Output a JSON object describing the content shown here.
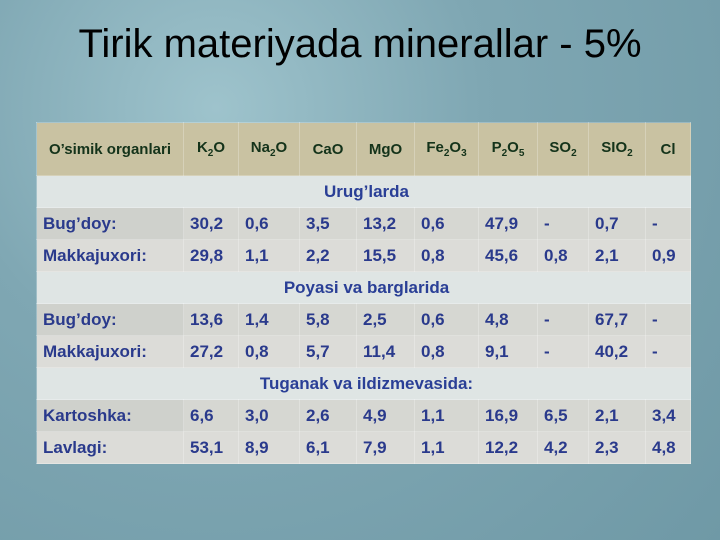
{
  "slide": {
    "title": "Tirik materiyada minerallar - 5%",
    "table": {
      "header": [
        [
          "O’simik organlari"
        ],
        [
          "K",
          "2",
          "O"
        ],
        [
          "Na",
          "2",
          "O"
        ],
        [
          "CaO"
        ],
        [
          "MgO"
        ],
        [
          "Fe",
          "2",
          "O",
          "3",
          ""
        ],
        [
          "P",
          "2",
          "O",
          "5",
          ""
        ],
        [
          "SO",
          "2",
          ""
        ],
        [
          "SIO",
          "2",
          ""
        ],
        [
          "Cl"
        ]
      ],
      "sections": [
        {
          "title": "Urug’larda",
          "rows": [
            {
              "label": "Bug’doy:",
              "cells": [
                "30,2",
                "0,6",
                "3,5",
                "13,2",
                "0,6",
                "47,9",
                "-",
                "0,7",
                "-"
              ],
              "highlight": [
                0,
                5
              ]
            },
            {
              "label": "Makkajuxori:",
              "cells": [
                "29,8",
                "1,1",
                "2,2",
                "15,5",
                "0,8",
                "45,6",
                "0,8",
                "2,1",
                "0,9"
              ],
              "highlight": [
                0,
                5
              ]
            }
          ]
        },
        {
          "title": "Poyasi va barglarida",
          "rows": [
            {
              "label": "Bug’doy:",
              "cells": [
                "13,6",
                "1,4",
                "5,8",
                "2,5",
                "0,6",
                "4,8",
                "-",
                "67,7",
                "-"
              ],
              "highlight": [
                7
              ]
            },
            {
              "label": "Makkajuxori:",
              "cells": [
                "27,2",
                "0,8",
                "5,7",
                "11,4",
                "0,8",
                "9,1",
                "-",
                "40,2",
                "-"
              ],
              "highlight": [
                7
              ]
            }
          ]
        },
        {
          "title": "Tuganak va ildizmevasida:",
          "rows": [
            {
              "label": "Kartoshka:",
              "cells": [
                "6,6",
                "3,0",
                "2,6",
                "4,9",
                "1,1",
                "16,9",
                "6,5",
                "2,1",
                "3,4"
              ],
              "highlight": []
            },
            {
              "label": "Lavlagi:",
              "cells": [
                "53,1",
                "8,9",
                "6,1",
                "7,9",
                "1,1",
                "12,2",
                "4,2",
                "2,3",
                "4,8"
              ],
              "highlight": []
            }
          ]
        }
      ]
    }
  }
}
